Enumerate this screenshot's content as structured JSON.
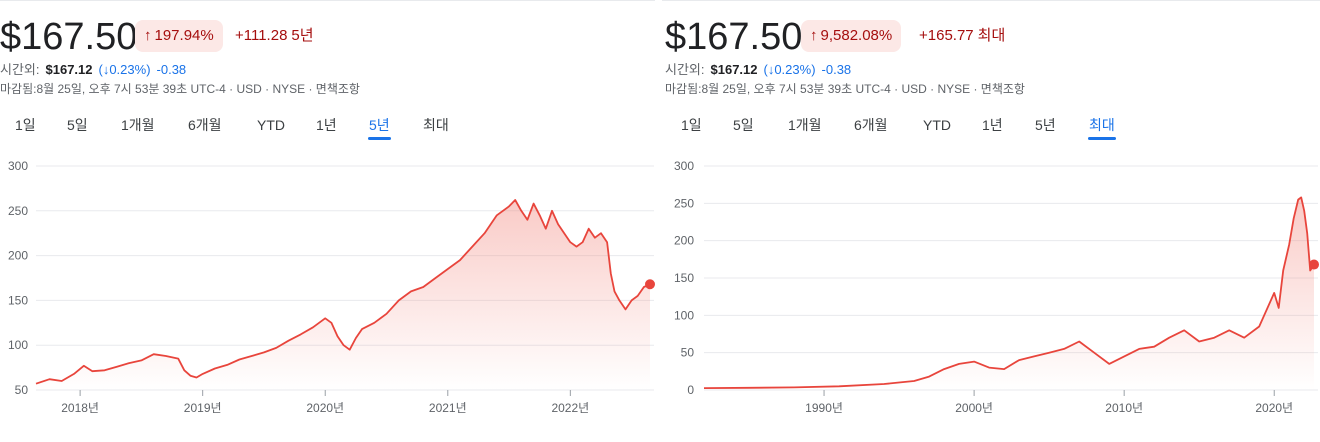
{
  "panels": [
    {
      "price": "$167.50",
      "change_pct": "197.94%",
      "change_abs": "+111.28",
      "period": "5년",
      "after_hours_label": "시간외:",
      "after_hours_price": "$167.12",
      "after_hours_pct": "(↓0.23%)",
      "after_hours_abs": "-0.38",
      "meta": "마감됨:8월 25일, 오후 7시 53분 39초 UTC-4 · USD · NYSE · 면책조항",
      "tabs": [
        "1일",
        "5일",
        "1개월",
        "6개월",
        "YTD",
        "1년",
        "5년",
        "최대"
      ],
      "active_tab": "5년"
    },
    {
      "price": "$167.50",
      "change_pct": "9,582.08%",
      "change_abs": "+165.77",
      "period": "최대",
      "after_hours_label": "시간외:",
      "after_hours_price": "$167.12",
      "after_hours_pct": "(↓0.23%)",
      "after_hours_abs": "-0.38",
      "meta": "마감됨:8월 25일, 오후 7시 53분 39초 UTC-4 · USD · NYSE · 면책조항",
      "tabs": [
        "1일",
        "5일",
        "1개월",
        "6개월",
        "YTD",
        "1년",
        "5년",
        "최대"
      ],
      "active_tab": "최대"
    }
  ],
  "colors": {
    "line": "#e8453c",
    "fill_top": "#f28b82",
    "grid": "#e8eaed",
    "positive_chip_bg": "#fce8e6",
    "positive_text": "#a50e0e",
    "after_hours_down": "#1a73e8",
    "active_tab": "#1a73e8"
  },
  "icons": {
    "up": "arrow-up-icon",
    "down": "arrow-down-icon"
  },
  "chart_data": [
    {
      "type": "area",
      "ylim": [
        50,
        300
      ],
      "yticks": [
        50,
        100,
        150,
        200,
        250,
        300
      ],
      "xlim": [
        2017.64,
        2022.65
      ],
      "xticks": [
        {
          "label": "2018년",
          "value": 2018.0
        },
        {
          "label": "2019년",
          "value": 2019.0
        },
        {
          "label": "2020년",
          "value": 2020.0
        },
        {
          "label": "2021년",
          "value": 2021.0
        },
        {
          "label": "2022년",
          "value": 2022.0
        }
      ],
      "x": [
        2017.64,
        2017.75,
        2017.85,
        2017.95,
        2018.03,
        2018.1,
        2018.2,
        2018.3,
        2018.4,
        2018.5,
        2018.6,
        2018.7,
        2018.8,
        2018.85,
        2018.9,
        2018.95,
        2019.0,
        2019.1,
        2019.2,
        2019.3,
        2019.4,
        2019.5,
        2019.6,
        2019.7,
        2019.8,
        2019.9,
        2020.0,
        2020.05,
        2020.1,
        2020.15,
        2020.2,
        2020.25,
        2020.3,
        2020.4,
        2020.5,
        2020.6,
        2020.7,
        2020.8,
        2020.9,
        2021.0,
        2021.1,
        2021.2,
        2021.3,
        2021.4,
        2021.5,
        2021.55,
        2021.6,
        2021.65,
        2021.7,
        2021.75,
        2021.8,
        2021.85,
        2021.9,
        2021.95,
        2022.0,
        2022.05,
        2022.1,
        2022.15,
        2022.2,
        2022.25,
        2022.3,
        2022.33,
        2022.36,
        2022.4,
        2022.45,
        2022.5,
        2022.55,
        2022.6,
        2022.65
      ],
      "y": [
        57,
        62,
        60,
        68,
        77,
        71,
        72,
        76,
        80,
        83,
        90,
        88,
        85,
        72,
        66,
        64,
        68,
        74,
        78,
        84,
        88,
        92,
        97,
        105,
        112,
        120,
        130,
        125,
        110,
        100,
        95,
        108,
        118,
        125,
        135,
        150,
        160,
        165,
        175,
        185,
        195,
        210,
        225,
        245,
        255,
        262,
        250,
        240,
        258,
        245,
        230,
        250,
        235,
        225,
        215,
        210,
        215,
        230,
        220,
        225,
        215,
        180,
        160,
        150,
        140,
        150,
        155,
        165,
        168
      ]
    },
    {
      "type": "area",
      "ylim": [
        0,
        300
      ],
      "yticks": [
        0,
        50,
        100,
        150,
        200,
        250,
        300
      ],
      "xlim": [
        1982.0,
        2022.65
      ],
      "xticks": [
        {
          "label": "1990년",
          "value": 1990.0
        },
        {
          "label": "2000년",
          "value": 2000.0
        },
        {
          "label": "2010년",
          "value": 2010.0
        },
        {
          "label": "2020년",
          "value": 2020.0
        }
      ],
      "x": [
        1982.0,
        1985.0,
        1988.0,
        1991.0,
        1994.0,
        1996.0,
        1997.0,
        1998.0,
        1999.0,
        2000.0,
        2001.0,
        2002.0,
        2003.0,
        2004.0,
        2005.0,
        2006.0,
        2007.0,
        2008.0,
        2009.0,
        2010.0,
        2011.0,
        2012.0,
        2013.0,
        2014.0,
        2015.0,
        2016.0,
        2017.0,
        2018.0,
        2019.0,
        2020.0,
        2020.3,
        2020.6,
        2021.0,
        2021.3,
        2021.6,
        2021.8,
        2022.0,
        2022.2,
        2022.4,
        2022.65
      ],
      "y": [
        2.5,
        3,
        3.5,
        5,
        8,
        12,
        18,
        28,
        35,
        38,
        30,
        28,
        40,
        45,
        50,
        55,
        65,
        50,
        35,
        45,
        55,
        58,
        70,
        80,
        65,
        70,
        80,
        70,
        85,
        130,
        110,
        160,
        195,
        230,
        255,
        258,
        240,
        210,
        160,
        168
      ]
    }
  ]
}
